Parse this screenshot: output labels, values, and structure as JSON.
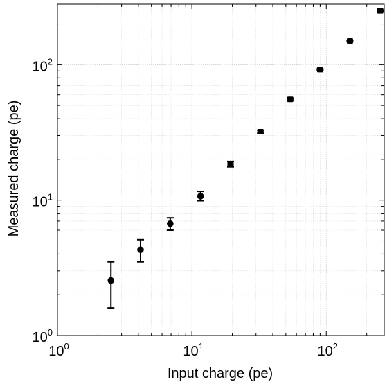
{
  "chart_data": {
    "type": "scatter",
    "xlabel": "Input charge (pe)",
    "ylabel": "Measured charge (pe)",
    "xscale": "log",
    "yscale": "log",
    "xlim": [
      1,
      270
    ],
    "ylim": [
      1,
      280
    ],
    "grid": true,
    "colors": {
      "marker": "#000000",
      "axis": "#000000",
      "grid": "#c8c8c8"
    },
    "x_ticks": [
      {
        "base": "10",
        "exp": "0",
        "value": 1
      },
      {
        "base": "10",
        "exp": "1",
        "value": 10
      },
      {
        "base": "10",
        "exp": "2",
        "value": 100
      }
    ],
    "y_ticks": [
      {
        "base": "10",
        "exp": "0",
        "value": 1
      },
      {
        "base": "10",
        "exp": "1",
        "value": 10
      },
      {
        "base": "10",
        "exp": "2",
        "value": 100
      }
    ],
    "points": [
      {
        "x": 2.5,
        "y": 2.55,
        "yerr_low": 1.6,
        "yerr_high": 3.5,
        "marker": "circle"
      },
      {
        "x": 4.15,
        "y": 4.3,
        "yerr_low": 3.5,
        "yerr_high": 5.1,
        "marker": "circle"
      },
      {
        "x": 6.9,
        "y": 6.7,
        "yerr_low": 6.0,
        "yerr_high": 7.4,
        "marker": "circle"
      },
      {
        "x": 11.6,
        "y": 10.7,
        "yerr_low": 9.9,
        "yerr_high": 11.6,
        "marker": "circle"
      },
      {
        "x": 19.4,
        "y": 18.4,
        "yerr_low": 17.6,
        "yerr_high": 19.3,
        "marker": "square"
      },
      {
        "x": 32.4,
        "y": 32.0,
        "yerr_low": 31.2,
        "yerr_high": 32.8,
        "marker": "square"
      },
      {
        "x": 53.9,
        "y": 55.5,
        "yerr_low": 54.5,
        "yerr_high": 56.5,
        "marker": "square"
      },
      {
        "x": 90.0,
        "y": 92.0,
        "yerr_low": 91.0,
        "yerr_high": 93.0,
        "marker": "square"
      },
      {
        "x": 150.0,
        "y": 150.0,
        "yerr_low": 149.0,
        "yerr_high": 151.0,
        "marker": "square"
      },
      {
        "x": 252.0,
        "y": 250.0,
        "yerr_low": 248.0,
        "yerr_high": 252.0,
        "marker": "square"
      }
    ]
  }
}
